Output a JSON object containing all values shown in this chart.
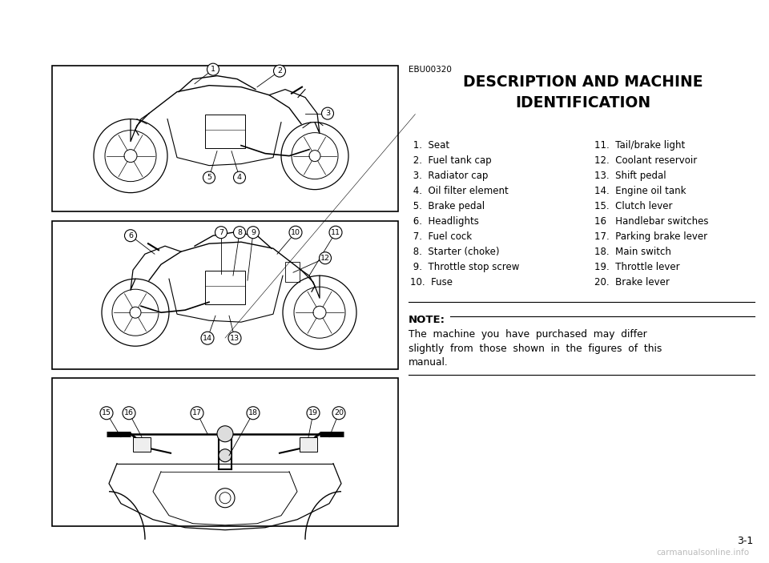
{
  "bg_color": "#ffffff",
  "page_number": "3-1",
  "code": "EBU00320",
  "title_line1": "DESCRIPTION AND MACHINE",
  "title_line2": "IDENTIFICATION",
  "watermark": "carmanualsonline.info",
  "left_col_items": [
    " 1.  Seat",
    " 2.  Fuel tank cap",
    " 3.  Radiator cap",
    " 4.  Oil filter element",
    " 5.  Brake pedal",
    " 6.  Headlights",
    " 7.  Fuel cock",
    " 8.  Starter (choke)",
    " 9.  Throttle stop screw",
    "10.  Fuse"
  ],
  "right_col_items": [
    "11.  Tail/brake light",
    "12.  Coolant reservoir",
    "13.  Shift pedal",
    "14.  Engine oil tank",
    "15.  Clutch lever",
    "16   Handlebar switches",
    "17.  Parking brake lever",
    "18.  Main switch",
    "19.  Throttle lever",
    "20.  Brake lever"
  ],
  "note_label": "NOTE:",
  "note_lines": [
    "The  machine  you  have  purchased  may  differ",
    "slightly  from  those  shown  in  the  figures  of  this",
    "manual."
  ],
  "diagram_border_color": "#000000",
  "diagram_bg": "#ffffff"
}
